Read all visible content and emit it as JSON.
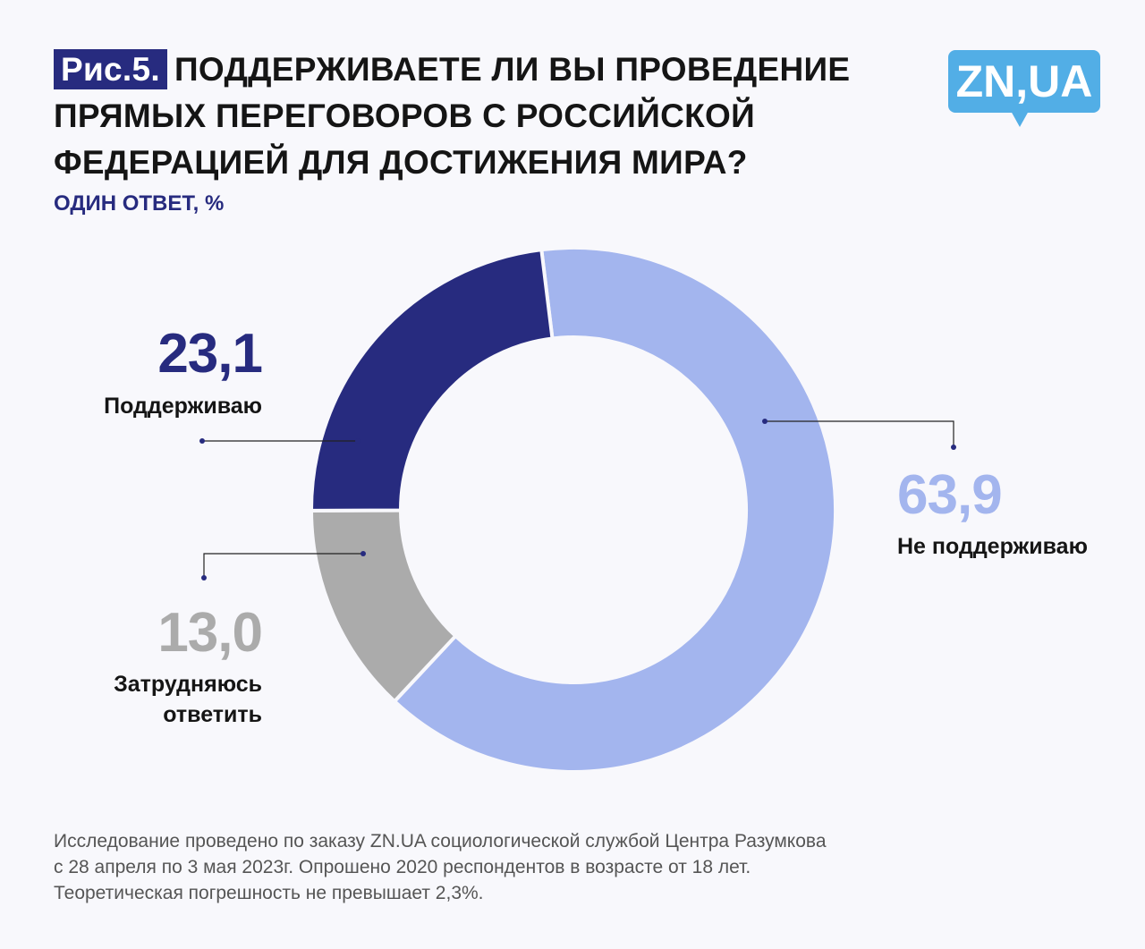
{
  "header": {
    "fig_label": "Рис.5.",
    "title": "ПОДДЕРЖИВАЕТЕ ЛИ ВЫ ПРОВЕДЕНИЕ ПРЯМЫХ ПЕРЕГОВОРОВ С РОССИЙСКОЙ ФЕДЕРАЦИЕЙ ДЛЯ ДОСТИЖЕНИЯ МИРА?",
    "subtitle": "ОДИН ОТВЕТ, %",
    "logo": "ZN,UA"
  },
  "chart_data": {
    "type": "pie",
    "donut": true,
    "title": "ПОДДЕРЖИВАЕТЕ ЛИ ВЫ ПРОВЕДЕНИЕ ПРЯМЫХ ПЕРЕГОВОРОВ С РОССИЙСКОЙ ФЕДЕРАЦИЕЙ ДЛЯ ДОСТИЖЕНИЯ МИРА?",
    "unit": "%",
    "slices": [
      {
        "label": "Не поддерживаю",
        "value": 63.9,
        "value_label": "63,9",
        "color": "#a3b5ee"
      },
      {
        "label": "Затрудняюсь ответить",
        "value": 13.0,
        "value_label": "13,0",
        "color": "#ababab"
      },
      {
        "label": "Поддерживаю",
        "value": 23.1,
        "value_label": "23,1",
        "color": "#272b7f"
      }
    ]
  },
  "footer": {
    "lines": [
      "Исследование проведено по заказу ZN.UA социологической службой Центра Разумкова",
      "с 28 апреля по 3 мая 2023г. Опрошено 2020 респондентов в возрасте от 18 лет.",
      "Теоретическая погрешность не превышает 2,3%."
    ]
  }
}
